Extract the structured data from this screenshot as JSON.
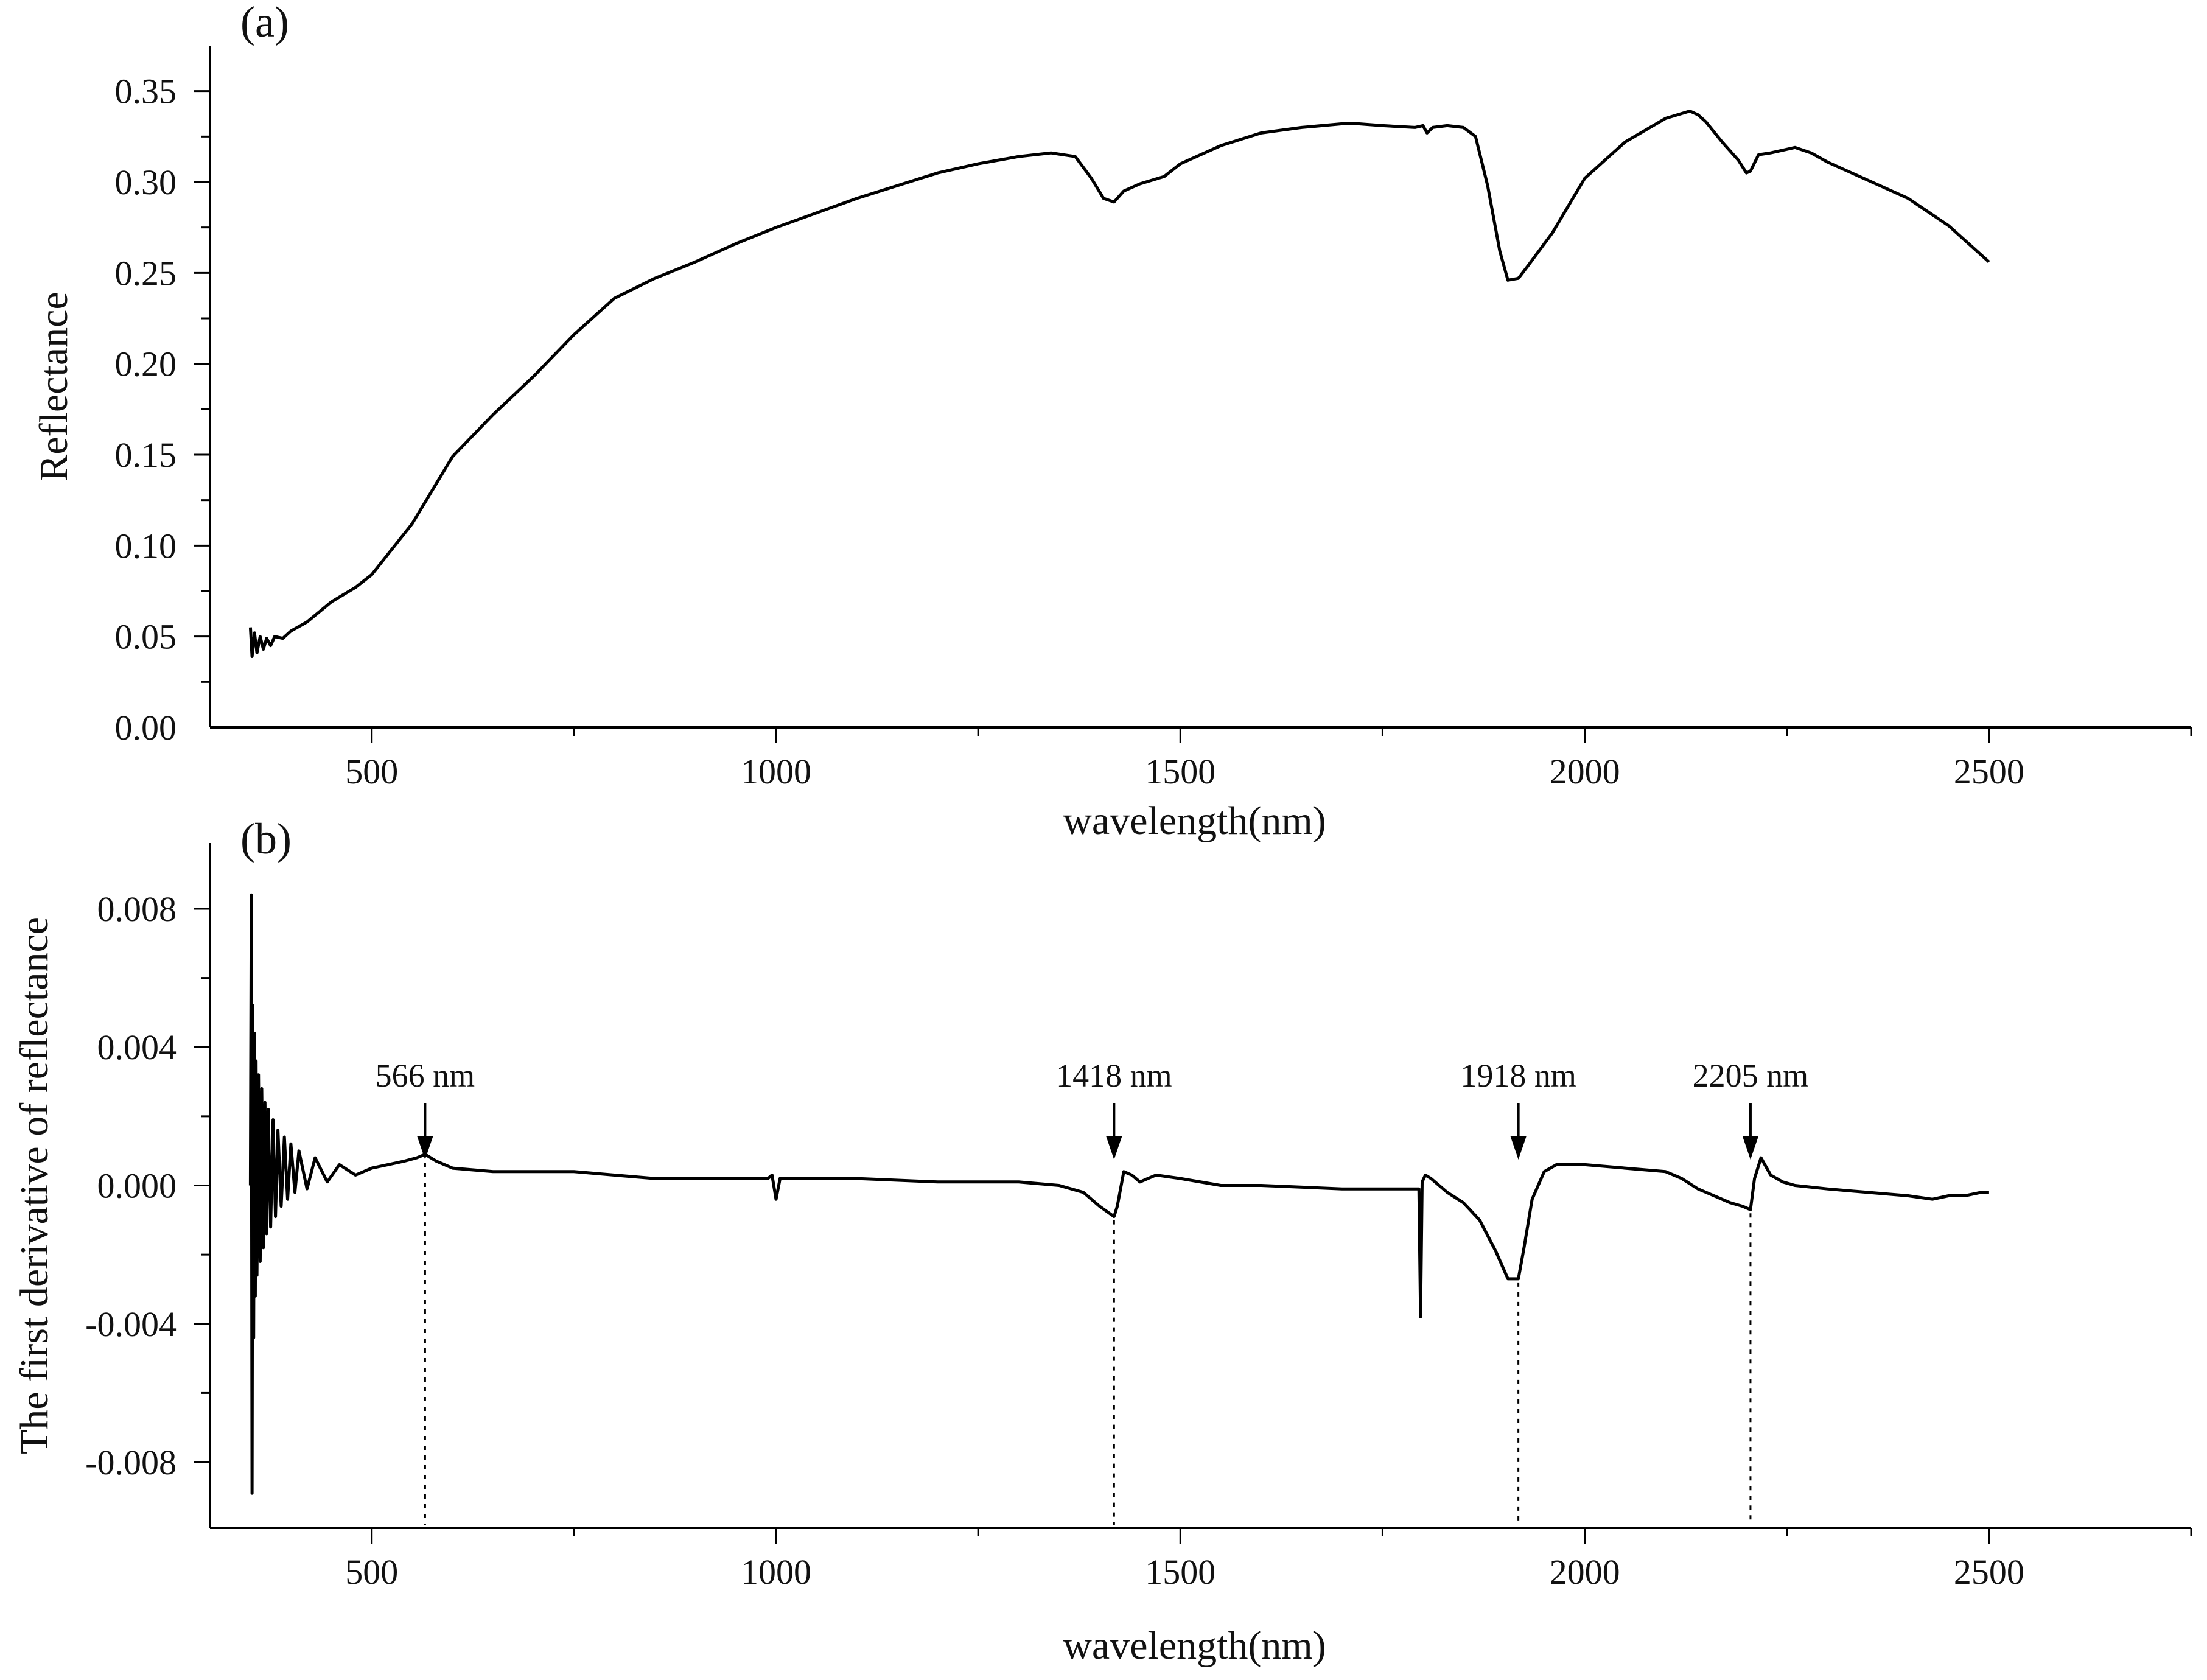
{
  "figure": {
    "line_color": "#000000",
    "background": "#ffffff"
  },
  "chart_data": [
    {
      "type": "line",
      "panel_label": "(a)",
      "title": "",
      "xlabel": "wavelength(nm)",
      "ylabel": "Reflectance",
      "xlim": [
        300,
        2750
      ],
      "ylim": [
        0.0,
        0.375
      ],
      "xticks": [
        500,
        1000,
        1500,
        2000,
        2500
      ],
      "xtick_labels": [
        "500",
        "1000",
        "1500",
        "2000",
        "2500"
      ],
      "yticks": [
        0.0,
        0.05,
        0.1,
        0.15,
        0.2,
        0.25,
        0.3,
        0.35
      ],
      "ytick_labels": [
        "0.00",
        "0.05",
        "0.10",
        "0.15",
        "0.20",
        "0.25",
        "0.30",
        "0.35"
      ],
      "grid": false,
      "series": [
        {
          "name": "Reflectance",
          "x": [
            350,
            352,
            355,
            358,
            362,
            366,
            370,
            375,
            380,
            390,
            400,
            420,
            450,
            480,
            500,
            550,
            600,
            650,
            700,
            750,
            800,
            850,
            900,
            950,
            1000,
            1050,
            1100,
            1150,
            1200,
            1250,
            1300,
            1340,
            1370,
            1390,
            1405,
            1418,
            1430,
            1450,
            1480,
            1500,
            1550,
            1600,
            1650,
            1700,
            1720,
            1750,
            1790,
            1800,
            1805,
            1812,
            1830,
            1850,
            1865,
            1880,
            1895,
            1905,
            1918,
            1930,
            1960,
            2000,
            2050,
            2100,
            2130,
            2140,
            2150,
            2170,
            2190,
            2200,
            2205,
            2215,
            2230,
            2260,
            2280,
            2300,
            2350,
            2400,
            2450,
            2500
          ],
          "values": [
            0.055,
            0.039,
            0.052,
            0.041,
            0.05,
            0.043,
            0.049,
            0.045,
            0.05,
            0.049,
            0.053,
            0.058,
            0.069,
            0.077,
            0.084,
            0.112,
            0.149,
            0.172,
            0.193,
            0.216,
            0.236,
            0.247,
            0.256,
            0.266,
            0.275,
            0.283,
            0.291,
            0.298,
            0.305,
            0.31,
            0.314,
            0.316,
            0.314,
            0.302,
            0.291,
            0.289,
            0.295,
            0.299,
            0.303,
            0.31,
            0.32,
            0.327,
            0.33,
            0.332,
            0.332,
            0.331,
            0.33,
            0.331,
            0.327,
            0.33,
            0.331,
            0.33,
            0.325,
            0.298,
            0.262,
            0.246,
            0.247,
            0.254,
            0.272,
            0.302,
            0.322,
            0.335,
            0.339,
            0.337,
            0.333,
            0.322,
            0.312,
            0.305,
            0.306,
            0.315,
            0.316,
            0.319,
            0.316,
            0.311,
            0.301,
            0.291,
            0.276,
            0.256
          ]
        }
      ]
    },
    {
      "type": "line",
      "panel_label": "(b)",
      "title": "",
      "xlabel": "wavelength(nm)",
      "ylabel": "The first derivative of reflectance",
      "xlim": [
        300,
        2750
      ],
      "ylim": [
        -0.0099,
        0.0099
      ],
      "xticks": [
        500,
        1000,
        1500,
        2000,
        2500
      ],
      "xtick_labels": [
        "500",
        "1000",
        "1500",
        "2000",
        "2500"
      ],
      "yticks": [
        -0.008,
        -0.004,
        0.0,
        0.004,
        0.008
      ],
      "ytick_labels": [
        "-0.008",
        "-0.004",
        "0.000",
        "0.004",
        "0.008"
      ],
      "grid": false,
      "series": [
        {
          "name": "First derivative",
          "x": [
            350,
            351,
            352,
            353,
            354,
            355,
            356,
            357,
            358,
            360,
            362,
            364,
            366,
            368,
            370,
            372,
            375,
            378,
            381,
            384,
            388,
            392,
            396,
            400,
            405,
            410,
            420,
            430,
            445,
            460,
            480,
            500,
            520,
            540,
            556,
            566,
            580,
            600,
            650,
            700,
            750,
            800,
            850,
            900,
            950,
            990,
            995,
            1000,
            1005,
            1010,
            1050,
            1100,
            1200,
            1300,
            1350,
            1380,
            1400,
            1418,
            1422,
            1430,
            1440,
            1450,
            1460,
            1470,
            1500,
            1550,
            1600,
            1700,
            1795,
            1797,
            1799,
            1801,
            1803,
            1810,
            1820,
            1830,
            1850,
            1870,
            1890,
            1905,
            1918,
            1925,
            1935,
            1950,
            1965,
            1980,
            2000,
            2050,
            2100,
            2120,
            2140,
            2160,
            2180,
            2195,
            2205,
            2210,
            2218,
            2230,
            2245,
            2260,
            2300,
            2350,
            2400,
            2430,
            2450,
            2470,
            2490,
            2500
          ],
          "values": [
            0.0,
            0.0084,
            -0.0089,
            0.0052,
            -0.0044,
            0.0044,
            -0.0032,
            0.0036,
            -0.0026,
            0.0032,
            -0.0022,
            0.0028,
            -0.0018,
            0.0024,
            -0.0014,
            0.0022,
            -0.0012,
            0.0019,
            -0.0009,
            0.0016,
            -0.0006,
            0.0014,
            -0.0004,
            0.0012,
            -0.0002,
            0.001,
            -0.0001,
            0.0008,
            0.0001,
            0.0006,
            0.0003,
            0.0005,
            0.0006,
            0.0007,
            0.0008,
            0.0009,
            0.0007,
            0.0005,
            0.0004,
            0.0004,
            0.0004,
            0.0003,
            0.0002,
            0.0002,
            0.0002,
            0.0002,
            0.0003,
            -0.0004,
            0.0002,
            0.0002,
            0.0002,
            0.0002,
            0.0001,
            0.0001,
            0.0,
            -0.0002,
            -0.0006,
            -0.0009,
            -0.0006,
            0.0004,
            0.0003,
            0.0001,
            0.0002,
            0.0003,
            0.0002,
            0.0,
            0.0,
            -0.0001,
            -0.0001,
            -0.0038,
            0.0001,
            0.0002,
            0.0003,
            0.0002,
            0.0,
            -0.0002,
            -0.0005,
            -0.001,
            -0.0019,
            -0.0027,
            -0.0027,
            -0.0018,
            -0.0004,
            0.0004,
            0.0006,
            0.0006,
            0.0006,
            0.0005,
            0.0004,
            0.0002,
            -0.0001,
            -0.0003,
            -0.0005,
            -0.0006,
            -0.0007,
            0.0002,
            0.0008,
            0.0003,
            0.0001,
            0.0,
            -0.0001,
            -0.0002,
            -0.0003,
            -0.0004,
            -0.0003,
            -0.0003,
            -0.0002,
            -0.0002
          ]
        }
      ],
      "annotations": [
        {
          "label": "566 nm",
          "x": 566
        },
        {
          "label": "1418 nm",
          "x": 1418
        },
        {
          "label": "1918 nm",
          "x": 1918
        },
        {
          "label": "2205 nm",
          "x": 2205
        }
      ]
    }
  ]
}
